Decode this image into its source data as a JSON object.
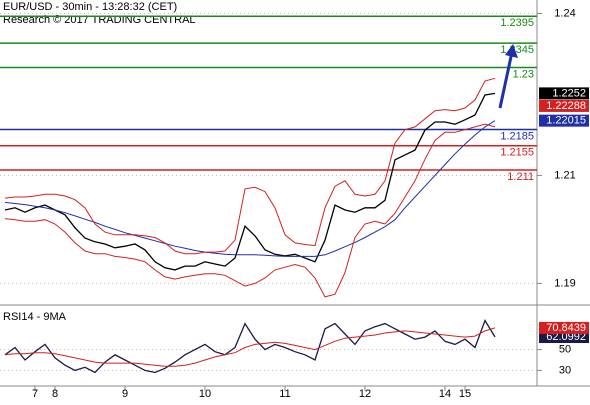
{
  "chart_data": [
    {
      "type": "line",
      "title": "EUR/USD - 30min - 13:28:32 (CET)",
      "subtitle": "Research © 2017 TRADING CENTRAL",
      "categories": [
        null,
        null,
        null,
        "7",
        null,
        "8",
        null,
        null,
        null,
        null,
        null,
        null,
        "9",
        null,
        null,
        null,
        null,
        null,
        null,
        null,
        "10",
        null,
        null,
        null,
        null,
        null,
        null,
        null,
        "11",
        null,
        null,
        null,
        null,
        null,
        null,
        null,
        "12",
        null,
        null,
        null,
        null,
        null,
        null,
        null,
        "14",
        null,
        "15",
        null,
        null,
        null
      ],
      "series": [
        {
          "name": "price",
          "color": "#000000",
          "values": [
            1.2036,
            1.204,
            1.2032,
            1.204,
            1.2045,
            1.2036,
            1.2027,
            1.2003,
            1.1984,
            1.1977,
            1.1973,
            1.1966,
            1.1969,
            1.1973,
            1.1962,
            1.194,
            1.1929,
            1.1925,
            1.1932,
            1.1932,
            1.194,
            1.1936,
            1.1932,
            1.1947,
            1.2006,
            1.1988,
            1.1962,
            1.1954,
            1.1951,
            1.1954,
            1.1947,
            1.194,
            1.198,
            1.2045,
            1.2036,
            1.2032,
            1.204,
            1.204,
            1.2054,
            1.2129,
            1.2138,
            1.2147,
            1.2184,
            1.2199,
            1.2199,
            1.2195,
            1.2203,
            1.2212,
            1.2249,
            1.2252
          ]
        },
        {
          "name": "ma",
          "color": "#1f2fa8",
          "values": [
            1.205,
            1.2048,
            1.2046,
            1.2043,
            1.204,
            1.2036,
            1.2031,
            1.2025,
            1.2019,
            1.2013,
            1.2006,
            1.2,
            1.1994,
            1.1989,
            1.1984,
            1.1979,
            1.1974,
            1.1969,
            1.1965,
            1.1961,
            1.1958,
            1.1956,
            1.1954,
            1.1953,
            1.1953,
            1.1953,
            1.1952,
            1.1951,
            1.195,
            1.195,
            1.195,
            1.195,
            1.1953,
            1.196,
            1.1968,
            1.1976,
            1.1985,
            1.1995,
            1.2005,
            1.2018,
            1.204,
            1.206,
            1.208,
            1.21,
            1.212,
            1.214,
            1.2158,
            1.2175,
            1.219,
            1.22015
          ]
        },
        {
          "name": "upper",
          "color": "#d42020",
          "values": [
            1.2058,
            1.206,
            1.206,
            1.2062,
            1.2065,
            1.2065,
            1.2062,
            1.2055,
            1.204,
            1.201,
            1.1995,
            1.199,
            1.199,
            1.199,
            1.1988,
            1.1985,
            1.1975,
            1.196,
            1.1955,
            1.1955,
            1.1958,
            1.1958,
            1.196,
            1.198,
            1.2075,
            1.2078,
            1.207,
            1.204,
            1.199,
            1.1975,
            1.1972,
            1.197,
            1.204,
            1.208,
            1.209,
            1.2065,
            1.2062,
            1.2065,
            1.209,
            1.216,
            1.2185,
            1.219,
            1.2205,
            1.222,
            1.2222,
            1.222,
            1.2225,
            1.224,
            1.2275,
            1.228
          ]
        },
        {
          "name": "lower",
          "color": "#d42020",
          "values": [
            1.202,
            1.2018,
            1.2015,
            1.2015,
            1.2018,
            1.201,
            1.1995,
            1.1975,
            1.196,
            1.1955,
            1.1955,
            1.195,
            1.1948,
            1.1945,
            1.194,
            1.1925,
            1.1912,
            1.1908,
            1.1912,
            1.1915,
            1.1918,
            1.1918,
            1.1915,
            1.1905,
            1.1895,
            1.19,
            1.191,
            1.1925,
            1.193,
            1.1935,
            1.193,
            1.191,
            1.1875,
            1.188,
            1.192,
            1.1985,
            1.201,
            1.2015,
            1.201,
            1.203,
            1.206,
            1.209,
            1.213,
            1.2165,
            1.218,
            1.218,
            1.2185,
            1.219,
            1.2195,
            1.219
          ]
        }
      ],
      "levels": [
        {
          "value": 1.2395,
          "color": "#1a8a1a"
        },
        {
          "value": 1.2345,
          "color": "#1a8a1a"
        },
        {
          "value": 1.23,
          "color": "#1a8a1a"
        },
        {
          "value": 1.2185,
          "color": "#1f2fa8"
        },
        {
          "value": 1.2155,
          "color": "#d42020"
        },
        {
          "value": 1.211,
          "color": "#d42020"
        }
      ],
      "price_labels": [
        {
          "value": 1.22288,
          "color": "#d42020"
        }
      ],
      "ylim": [
        1.186,
        1.2425
      ],
      "yticks": [
        1.24,
        1.21,
        1.19
      ],
      "grid": true
    },
    {
      "type": "line",
      "title": "RSI14 - 9MA",
      "series": [
        {
          "name": "rsi",
          "color": "#1a1a4a",
          "values": [
            45,
            52,
            40,
            48,
            55,
            42,
            35,
            30,
            33,
            28,
            38,
            45,
            40,
            35,
            30,
            28,
            32,
            38,
            45,
            50,
            55,
            48,
            45,
            52,
            75,
            60,
            50,
            55,
            52,
            48,
            45,
            40,
            70,
            75,
            65,
            55,
            68,
            72,
            75,
            70,
            65,
            60,
            62,
            68,
            58,
            55,
            60,
            52,
            78,
            62.0992
          ]
        },
        {
          "name": "rsi-ma",
          "color": "#d42020",
          "values": [
            45,
            46,
            46,
            47,
            47,
            46,
            44,
            42,
            40,
            38,
            37,
            37,
            37,
            37,
            36,
            35,
            34,
            34,
            35,
            37,
            40,
            43,
            45,
            47,
            52,
            55,
            56,
            57,
            56,
            54,
            52,
            50,
            54,
            58,
            61,
            62,
            63,
            64,
            66,
            67,
            68,
            67,
            66,
            65,
            64,
            63,
            62,
            63,
            68,
            70.8439
          ]
        }
      ],
      "ylim": [
        15,
        90
      ],
      "yticks": [
        50,
        30
      ],
      "grid": true
    }
  ]
}
